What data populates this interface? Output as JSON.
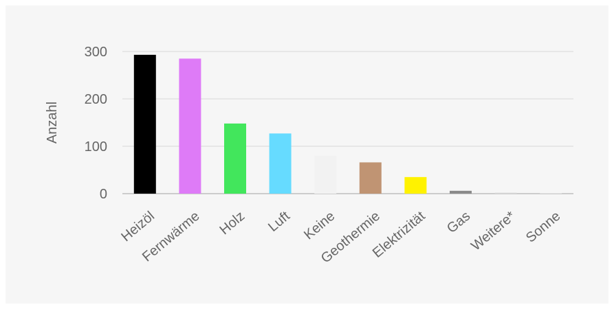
{
  "chart_data": {
    "type": "bar",
    "title": "",
    "xlabel": "",
    "ylabel": "Anzahl",
    "ylim": [
      0,
      300
    ],
    "yticks": [
      0,
      100,
      200,
      300
    ],
    "grid": true,
    "legend": "none",
    "categories": [
      "Heizöl",
      "Fernwärme",
      "Holz",
      "Luft",
      "Keine",
      "Geothermie",
      "Elektrizität",
      "Gas",
      "Weitere*",
      "Sonne"
    ],
    "values": [
      293,
      285,
      148,
      127,
      80,
      66,
      35,
      6,
      2,
      1
    ],
    "colors": [
      "#000000",
      "#de7bf7",
      "#42e65c",
      "#66dbff",
      "#f2f2f2",
      "#c09473",
      "#fff200",
      "#8a8a8a",
      "#d9d9d9",
      "#e8e8e8"
    ]
  }
}
